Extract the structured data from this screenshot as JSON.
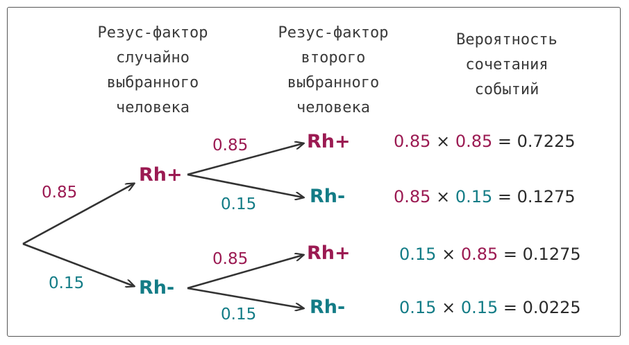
{
  "colors": {
    "rh_positive": "#9b1a52",
    "rh_negative": "#137c86",
    "text": "#2b2b2b",
    "arrow": "#333333"
  },
  "headers": {
    "first_person": [
      "Резус-фактор",
      "случайно",
      "выбранного",
      "человека"
    ],
    "second_person": [
      "Резус-фактор",
      "второго",
      "выбранного",
      "человека"
    ],
    "probability": [
      "Вероятность",
      "сочетания",
      "событий"
    ]
  },
  "level1": {
    "pos": {
      "label": "Rh+",
      "prob": "0.85"
    },
    "neg": {
      "label": "Rh-",
      "prob": "0.15"
    }
  },
  "level2": [
    {
      "label": "Rh+",
      "prob": "0.85"
    },
    {
      "label": "Rh-",
      "prob": "0.15"
    },
    {
      "label": "Rh+",
      "prob": "0.85"
    },
    {
      "label": "Rh-",
      "prob": "0.15"
    }
  ],
  "results": [
    {
      "a": "0.85",
      "times": "×",
      "b": "0.85",
      "eq": "=",
      "result": "0.7225"
    },
    {
      "a": "0.85",
      "times": "×",
      "b": "0.15",
      "eq": "=",
      "result": "0.1275"
    },
    {
      "a": "0.15",
      "times": "×",
      "b": "0.85",
      "eq": "=",
      "result": "0.1275"
    },
    {
      "a": "0.15",
      "times": "×",
      "b": "0.15",
      "eq": "=",
      "result": "0.0225"
    }
  ]
}
